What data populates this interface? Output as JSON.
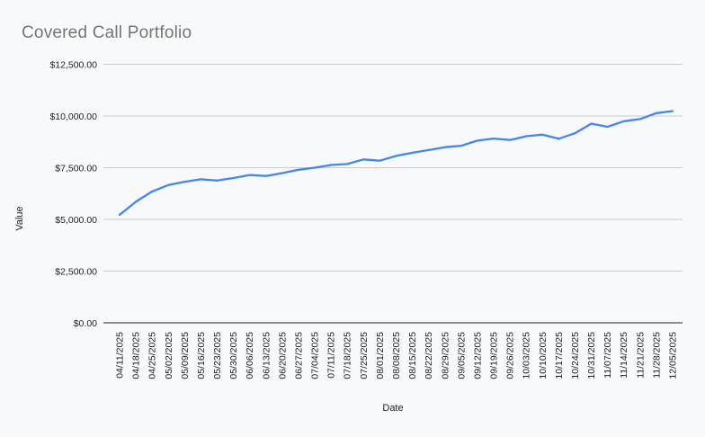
{
  "title": "Covered Call Portfolio",
  "colors": {
    "background": "#f8f9fa",
    "line": "#4285f4",
    "gridline": "#cccccc",
    "zero_axis": "#212121",
    "title_text": "#757575",
    "tick_text": "#1f1f1f"
  },
  "chart_data": {
    "type": "line",
    "title": "Covered Call Portfolio",
    "xlabel": "Date",
    "ylabel": "Value",
    "x": [
      "04/11/2025",
      "04/18/2025",
      "04/25/2025",
      "05/02/2025",
      "05/09/2025",
      "05/16/2025",
      "05/23/2025",
      "05/30/2025",
      "06/06/2025",
      "06/13/2025",
      "06/20/2025",
      "06/27/2025",
      "07/04/2025",
      "07/11/2025",
      "07/18/2025",
      "07/25/2025",
      "08/01/2025",
      "08/08/2025",
      "08/15/2025",
      "08/22/2025",
      "08/29/2025",
      "09/05/2025",
      "09/12/2025",
      "09/19/2025",
      "09/26/2025",
      "10/03/2025",
      "10/10/2025",
      "10/17/2025",
      "10/24/2025",
      "10/31/2025",
      "11/07/2025",
      "11/14/2025",
      "11/21/2025",
      "11/28/2025",
      "12/05/2025"
    ],
    "values": [
      5220,
      5850,
      6350,
      6660,
      6820,
      6940,
      6880,
      7000,
      7150,
      7100,
      7240,
      7400,
      7500,
      7630,
      7680,
      7900,
      7840,
      8070,
      8220,
      8350,
      8490,
      8560,
      8810,
      8910,
      8840,
      9020,
      9100,
      8900,
      9170,
      9630,
      9480,
      9750,
      9850,
      10140,
      10240
    ],
    "ylim": [
      0,
      12500
    ],
    "yticks": [
      0,
      2500,
      5000,
      7500,
      10000,
      12500
    ],
    "ytick_labels": [
      "$0.00",
      "$2,500.00",
      "$5,000.00",
      "$7,500.00",
      "$10,000.00",
      "$12,500.00"
    ],
    "grid": true,
    "legend": false,
    "line_color": "#4285f4"
  }
}
